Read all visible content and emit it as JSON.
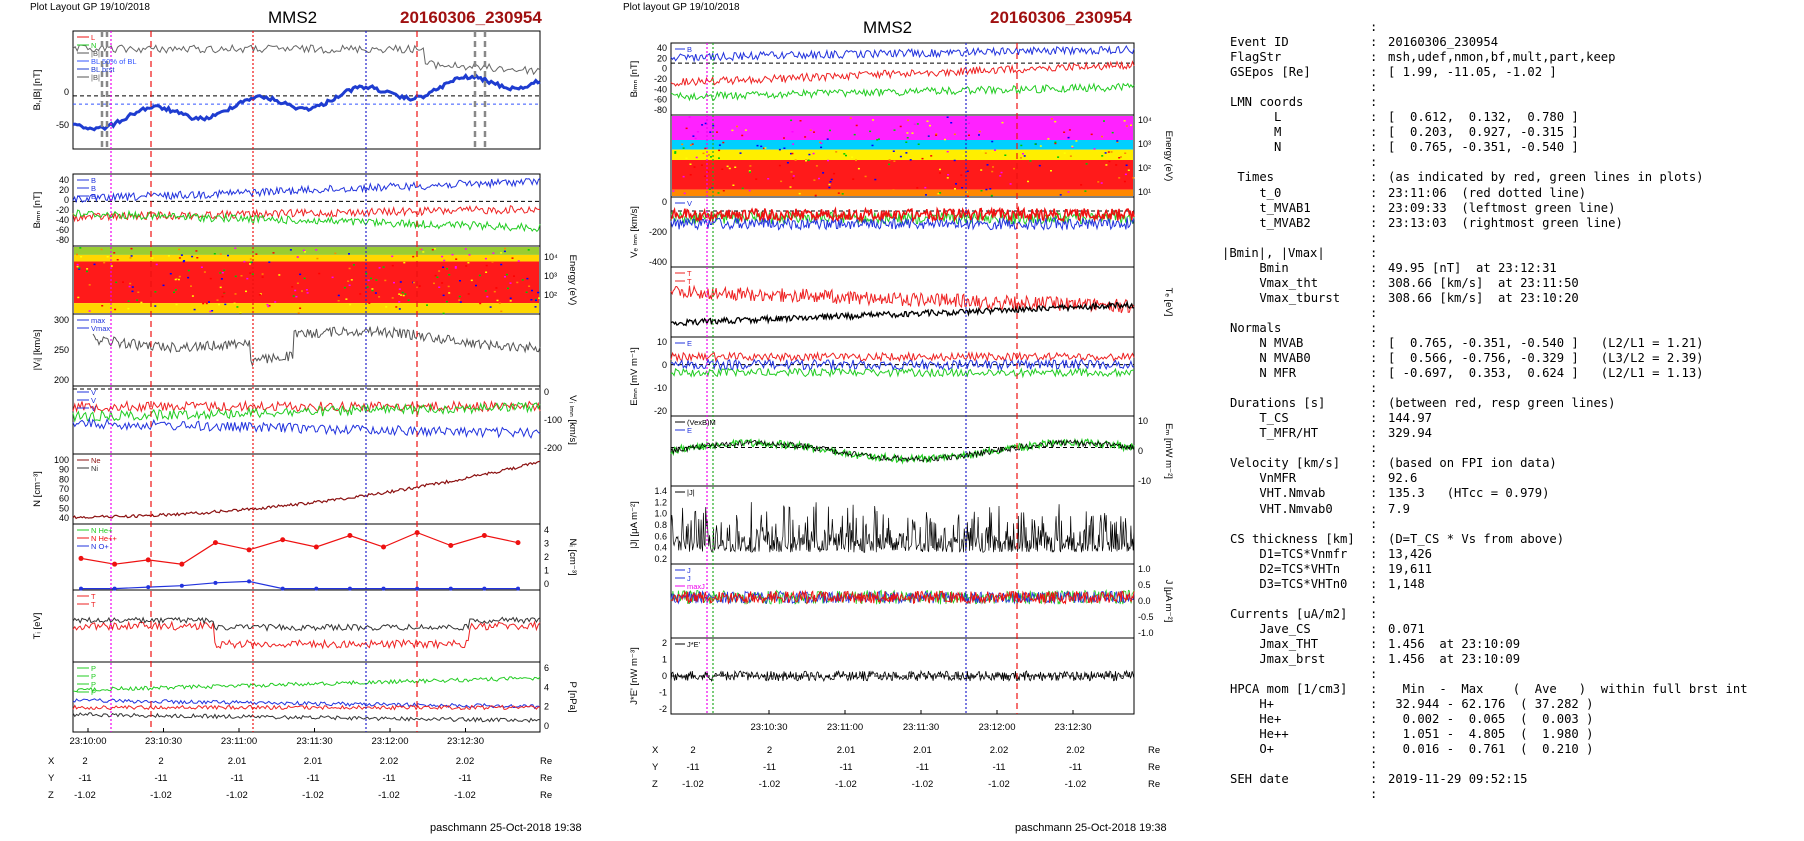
{
  "left_panel": {
    "header": "Plot Layout GP 19/10/2018",
    "title": "MMS2",
    "event": "20160306_230954",
    "footer": "paschmann 25-Oct-2018 19:38",
    "ylabels": [
      "Bₗ,|B| [nT]",
      "Bₗₘₙ [nT]",
      "Energy (eV)",
      "|Vᵢ| [km/s]",
      "Vᵢ ₗₘₙ [km/s]",
      "N [cm⁻³]",
      "Nᵢ [cm⁻³]",
      "Tᵢ [eV]",
      "P [nPa]"
    ],
    "ticks": {
      "p1": [
        "0",
        "-50"
      ],
      "p2": [
        "40",
        "20",
        "0",
        "-20",
        "-40",
        "-60",
        "-80"
      ],
      "p3": [
        "10⁴",
        "10³",
        "10²"
      ],
      "p4": [
        "300",
        "250",
        "200"
      ],
      "p5": [
        "0",
        "-100",
        "-200"
      ],
      "p6": [
        "100",
        "90",
        "80",
        "70",
        "60",
        "50",
        "40"
      ],
      "p7": [
        "4",
        "3",
        "2",
        "1",
        "0"
      ],
      "p9": [
        "6",
        "4",
        "2",
        "0"
      ]
    },
    "legends": {
      "p1": [
        "L",
        "N",
        "|B|",
        "BL 50% of BL",
        "BL brst",
        "|B|"
      ],
      "p2": [
        "B",
        "B",
        "B"
      ],
      "p4": [
        "max",
        "Vmax"
      ],
      "p5": [
        "V",
        "V",
        "V"
      ],
      "p6": [
        "Ne",
        "Ni"
      ],
      "p7": [
        "N He+",
        "N He++",
        "N O+"
      ],
      "p8": [
        "T",
        "T"
      ],
      "p9": [
        "P",
        "P",
        "P",
        "P"
      ]
    },
    "xticks": [
      "23:10:00",
      "23:10:30",
      "23:11:00",
      "23:11:30",
      "23:12:00",
      "23:12:30"
    ],
    "pos_rows": [
      {
        "label": "X",
        "values": [
          "2",
          "2",
          "2.01",
          "2.01",
          "2.02",
          "2.02"
        ],
        "unit": "Re"
      },
      {
        "label": "Y",
        "values": [
          "-11",
          "-11",
          "-11",
          "-11",
          "-11",
          "-11"
        ],
        "unit": "Re"
      },
      {
        "label": "Z",
        "values": [
          "-1.02",
          "-1.02",
          "-1.02",
          "-1.02",
          "-1.02",
          "-1.02"
        ],
        "unit": "Re"
      }
    ]
  },
  "mid_panel": {
    "header": "Plot layout GP 19/10/2018",
    "title": "MMS2",
    "event": "20160306_230954",
    "footer": "paschmann 25-Oct-2018 19:38",
    "ylabels": [
      "Bₗₘₙ [nT]",
      "Energy (eV)",
      "Vₑ ₗₘₙ [km/s]",
      "Tₑ [eV]",
      "Eₗₘₙ [mV m⁻¹]",
      "Eₘ [mW m⁻²]",
      "|J| [μA m⁻²]",
      "J [μA m⁻²]",
      "J*E' [nW m⁻³]"
    ],
    "ticks": {
      "p1": [
        "40",
        "20",
        "0",
        "-20",
        "-40",
        "-60",
        "-80"
      ],
      "p2": [
        "10⁴",
        "10³",
        "10²",
        "10¹"
      ],
      "p3": [
        "0",
        "-200",
        "-400"
      ],
      "p5": [
        "10",
        "0",
        "-10",
        "-20"
      ],
      "p6": [
        "10",
        "0",
        "-10"
      ],
      "p7": [
        "1.4",
        "1.2",
        "1.0",
        "0.8",
        "0.6",
        "0.4",
        "0.2"
      ],
      "p8": [
        "1.0",
        "0.5",
        "0.0",
        "-0.5",
        "-1.0"
      ],
      "p9": [
        "2",
        "1",
        "0",
        "-1",
        "-2"
      ]
    },
    "legends": {
      "p1": [
        "B"
      ],
      "p3": [
        "V"
      ],
      "p4": [
        "T",
        "T"
      ],
      "p5": [
        "E"
      ],
      "p6": [
        "(VexB)M",
        "E"
      ],
      "p7": [
        "|J|"
      ],
      "p8": [
        "J",
        "J",
        "maxJ"
      ],
      "p9": [
        "J*E'"
      ]
    },
    "xticks": [
      "23:10:30",
      "23:11:00",
      "23:11:30",
      "23:12:00",
      "23:12:30"
    ],
    "pos_rows": [
      {
        "label": "X",
        "values": [
          "2",
          "2",
          "2.01",
          "2.01",
          "2.02",
          "2.02"
        ],
        "unit": "Re"
      },
      {
        "label": "Y",
        "values": [
          "-11",
          "-11",
          "-11",
          "-11",
          "-11",
          "-11"
        ],
        "unit": "Re"
      },
      {
        "label": "Z",
        "values": [
          "-1.02",
          "-1.02",
          "-1.02",
          "-1.02",
          "-1.02",
          "-1.02"
        ],
        "unit": "Re"
      }
    ]
  },
  "info": {
    "lines": [
      {
        "k": "",
        "v": "",
        "colon": true
      },
      {
        "k": "Event ID",
        "v": "20160306_230954",
        "colon": true
      },
      {
        "k": "FlagStr",
        "v": "msh,udef,nmon,bf,mult,part,keep",
        "colon": true
      },
      {
        "k": "GSEpos [Re]",
        "v": "[ 1.99, -11.05, -1.02 ]",
        "colon": true
      },
      {
        "k": "",
        "v": "",
        "colon": true
      },
      {
        "k": "LMN coords",
        "v": "",
        "colon": true
      },
      {
        "k": "      L",
        "v": "[  0.612,  0.132,  0.780 ]",
        "colon": true
      },
      {
        "k": "      M",
        "v": "[  0.203,  0.927, -0.315 ]",
        "colon": true
      },
      {
        "k": "      N",
        "v": "[  0.765, -0.351, -0.540 ]",
        "colon": true
      },
      {
        "k": "",
        "v": "",
        "colon": true
      },
      {
        "k": " Times",
        "v": "(as indicated by red, green lines in plots)",
        "colon": true
      },
      {
        "k": "    t_0",
        "v": "23:11:06  (red dotted line)",
        "colon": true
      },
      {
        "k": "    t_MVAB1",
        "v": "23:09:33  (leftmost green line)",
        "colon": true
      },
      {
        "k": "    t_MVAB2",
        "v": "23:13:03  (rightmost green line)",
        "colon": true
      },
      {
        "k": "",
        "v": "",
        "colon": true
      },
      {
        "k": "|Bmin|, |Vmax|",
        "v": "",
        "colon": true,
        "raw": true
      },
      {
        "k": "    Bmin",
        "v": "49.95 [nT]  at 23:12:31",
        "colon": true
      },
      {
        "k": "    Vmax_tht",
        "v": "308.66 [km/s]  at 23:11:50",
        "colon": true
      },
      {
        "k": "    Vmax_tburst",
        "v": "308.66 [km/s]  at 23:10:20",
        "colon": true
      },
      {
        "k": "",
        "v": "",
        "colon": true
      },
      {
        "k": "Normals",
        "v": "",
        "colon": true
      },
      {
        "k": "    N MVAB",
        "v": "[  0.765, -0.351, -0.540 ]   (L2/L1 = 1.21)",
        "colon": true
      },
      {
        "k": "    N MVAB0",
        "v": "[  0.566, -0.756, -0.329 ]   (L3/L2 = 2.39)",
        "colon": true
      },
      {
        "k": "    N MFR",
        "v": "[ -0.697,  0.353,  0.624 ]   (L2/L1 = 1.13)",
        "colon": true
      },
      {
        "k": "",
        "v": "",
        "colon": true
      },
      {
        "k": "Durations [s]",
        "v": "(between red, resp green lines)",
        "colon": true
      },
      {
        "k": "    T_CS",
        "v": "144.97",
        "colon": true
      },
      {
        "k": "    T_MFR/HT",
        "v": "329.94",
        "colon": true
      },
      {
        "k": "",
        "v": "",
        "colon": true
      },
      {
        "k": "Velocity [km/s]",
        "v": "(based on FPI ion data)",
        "colon": true
      },
      {
        "k": "    VnMFR",
        "v": "92.6",
        "colon": true
      },
      {
        "k": "    VHT.Nmvab",
        "v": "135.3   (HTcc = 0.979)",
        "colon": true
      },
      {
        "k": "    VHT.Nmvab0",
        "v": "7.9",
        "colon": true
      },
      {
        "k": "",
        "v": "",
        "colon": true
      },
      {
        "k": "CS thickness [km]",
        "v": "(D=T_CS * Vs from above)",
        "colon": true
      },
      {
        "k": "    D1=TCS*Vnmfr",
        "v": "13,426",
        "colon": true
      },
      {
        "k": "    D2=TCS*VHTn",
        "v": "19,611",
        "colon": true
      },
      {
        "k": "    D3=TCS*VHTn0",
        "v": "1,148",
        "colon": true
      },
      {
        "k": "",
        "v": "",
        "colon": true
      },
      {
        "k": "Currents [uA/m2]",
        "v": "",
        "colon": true
      },
      {
        "k": "    Jave_CS",
        "v": "0.071",
        "colon": true
      },
      {
        "k": "    Jmax_THT",
        "v": "1.456  at 23:10:09",
        "colon": true
      },
      {
        "k": "    Jmax_brst",
        "v": "1.456  at 23:10:09",
        "colon": true
      },
      {
        "k": "",
        "v": "",
        "colon": true
      },
      {
        "k": "HPCA mom [1/cm3]",
        "v": "  Min  -  Max    (  Ave   )  within full brst int",
        "colon": true
      },
      {
        "k": "    H+",
        "v": " 32.944 - 62.176  ( 37.282 )",
        "colon": true
      },
      {
        "k": "    He+",
        "v": "  0.002 -  0.065  (  0.003 )",
        "colon": true
      },
      {
        "k": "    He++",
        "v": "  1.051 -  4.805  (  1.980 )",
        "colon": true
      },
      {
        "k": "    O+",
        "v": "  0.016 -  0.761  (  0.210 )",
        "colon": true
      },
      {
        "k": "",
        "v": "",
        "colon": true
      },
      {
        "k": "SEH date",
        "v": "2019-11-29 09:52:15",
        "colon": true
      },
      {
        "k": "",
        "v": "",
        "colon": true
      }
    ]
  },
  "chart_data": [
    {
      "type": "line",
      "title": "MMS2",
      "subtitle": "20160306_230954",
      "panels": [
        "Bₗ,|B| [nT]",
        "Bₗₘₙ [nT]",
        "Energy (eV)",
        "|Vᵢ| [km/s]",
        "Vᵢ ₗₘₙ [km/s]",
        "N [cm⁻³]",
        "Nᵢ [cm⁻³]",
        "Tᵢ [eV]",
        "P [nPa]"
      ],
      "x": [
        "23:10:00",
        "23:10:30",
        "23:11:00",
        "23:11:30",
        "23:12:00",
        "23:12:30"
      ],
      "note_series": {
        "N_He++": [
          2.2,
          1.8,
          2.1,
          1.8,
          3.3,
          2.8,
          3.5,
          3.0,
          3.8,
          3.0,
          4.0,
          3.1,
          3.8,
          3.3
        ],
        "N_He+": [
          0.1,
          0.1,
          0.2,
          0.3,
          0.5,
          0.6,
          0.1,
          0.1,
          0.1,
          0.1,
          0.1,
          0.1,
          0.1,
          0.1
        ]
      }
    },
    {
      "type": "line",
      "title": "MMS2",
      "subtitle": "20160306_230954",
      "panels": [
        "Bₗₘₙ [nT]",
        "Energy (eV)",
        "Vₑ ₗₘₙ [km/s]",
        "Tₑ [eV]",
        "Eₗₘₙ [mV m⁻¹]",
        "Eₘ [mW m⁻²]",
        "|J| [μA m⁻²]",
        "J [μA m⁻²]",
        "J*E' [nW m⁻³]"
      ],
      "x": [
        "23:10:30",
        "23:11:00",
        "23:11:30",
        "23:12:00",
        "23:12:30"
      ]
    }
  ]
}
